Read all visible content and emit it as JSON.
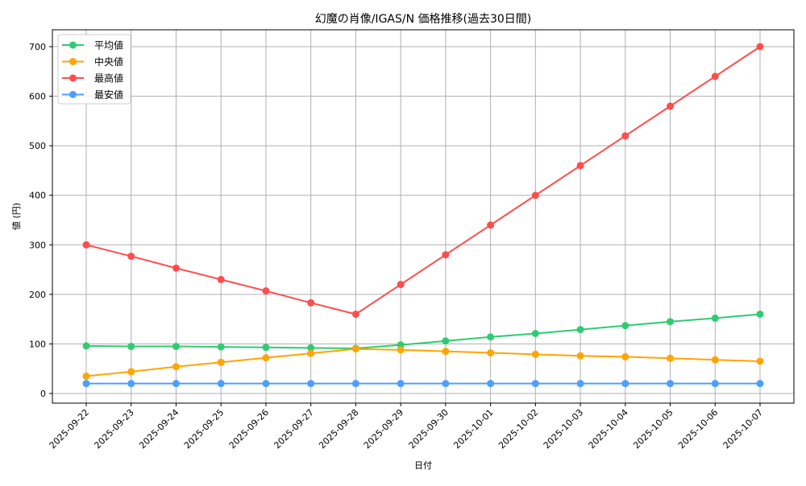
{
  "chart_data": {
    "type": "line",
    "title": "幻魔の肖像/IGAS/N 価格推移(過去30日間)",
    "xlabel": "日付",
    "ylabel": "値 (円)",
    "categories": [
      "2025-09-22",
      "2025-09-23",
      "2025-09-24",
      "2025-09-25",
      "2025-09-26",
      "2025-09-27",
      "2025-09-28",
      "2025-09-29",
      "2025-09-30",
      "2025-10-01",
      "2025-10-02",
      "2025-10-03",
      "2025-10-04",
      "2025-10-05",
      "2025-10-06",
      "2025-10-07"
    ],
    "series": [
      {
        "name": "平均値",
        "color": "#2ecc71",
        "values": [
          96,
          95,
          95,
          94,
          93,
          92,
          91,
          98,
          106,
          114,
          121,
          129,
          137,
          145,
          152,
          160
        ]
      },
      {
        "name": "中央値",
        "color": "#ffa500",
        "values": [
          35,
          44,
          54,
          63,
          72,
          81,
          90,
          88,
          85,
          82,
          79,
          76,
          74,
          71,
          68,
          65
        ]
      },
      {
        "name": "最高値",
        "color": "#ff4d4d",
        "values": [
          300,
          277,
          253,
          230,
          207,
          183,
          160,
          220,
          280,
          340,
          400,
          460,
          520,
          580,
          640,
          700
        ]
      },
      {
        "name": "最安値",
        "color": "#4d9fff",
        "values": [
          20,
          20,
          20,
          20,
          20,
          20,
          20,
          20,
          20,
          20,
          20,
          20,
          20,
          20,
          20,
          20
        ]
      }
    ],
    "yticks": [
      0,
      100,
      200,
      300,
      400,
      500,
      600,
      700
    ],
    "ylim": [
      -19,
      734
    ],
    "grid": true,
    "legend_position": "upper left",
    "markers": "circle"
  }
}
